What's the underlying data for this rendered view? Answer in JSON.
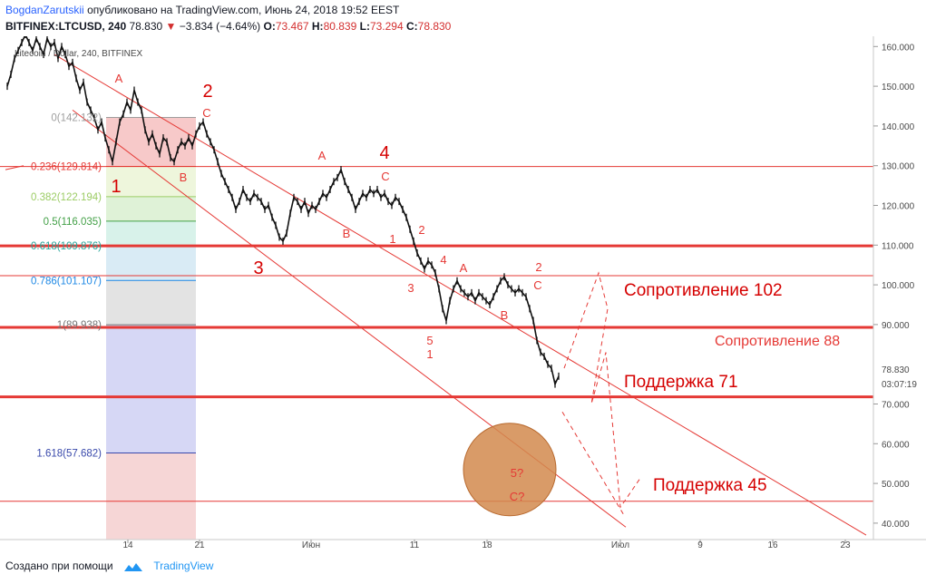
{
  "header": {
    "author": "BogdanZarutskii",
    "published": "опубликовано на TradingView.com, Июнь 24, 2018 19:52 EEST",
    "symbol": "BITFINEX:LTCUSD, 240",
    "last": "78.830",
    "change": "−3.834 (−4.64%)",
    "o_label": "O:",
    "o": "73.467",
    "h_label": "H:",
    "h": "80.839",
    "l_label": "L:",
    "l": "73.294",
    "c_label": "C:",
    "c": "78.830"
  },
  "watermark": "Litecoin / Dollar, 240, BITFINEX",
  "footer": {
    "created": "Создано при помощи",
    "brand": "TradingView"
  },
  "colors": {
    "resistance": "#e53935",
    "fib_bg_red": "#f8d0d0",
    "ellipse": "#d28a4e"
  },
  "chart_data": {
    "type": "candlestick",
    "title": "Litecoin / Dollar, 240, BITFINEX",
    "y_ticks": [
      "160.000",
      "150.000",
      "140.000",
      "130.000",
      "120.000",
      "110.000",
      "100.000",
      "90.000",
      "70.000",
      "60.000",
      "50.000",
      "40.000"
    ],
    "x_ticks": [
      "14",
      "21",
      "Июн",
      "11",
      "18",
      "Июл",
      "9",
      "16",
      "23"
    ],
    "price_label": "78.830",
    "countdown": "03:07:19",
    "ylim": [
      36,
      163
    ],
    "fib_levels": [
      {
        "label": "0(142.132)",
        "value": 142.132,
        "color": "#9e9e9e"
      },
      {
        "label": "0.236(129.814)",
        "value": 129.814,
        "color": "#e53935"
      },
      {
        "label": "0.382(122.194)",
        "value": 122.194,
        "color": "#9ccc65"
      },
      {
        "label": "0.5(116.035)",
        "value": 116.035,
        "color": "#43a047"
      },
      {
        "label": "0.618(109.876)",
        "value": 109.876,
        "color": "#26a69a"
      },
      {
        "label": "0.786(101.107)",
        "value": 101.107,
        "color": "#1e88e5"
      },
      {
        "label": "1(89.938)",
        "value": 89.938,
        "color": "#757575"
      },
      {
        "label": "1.618(57.682)",
        "value": 57.682,
        "color": "#3949ab"
      }
    ],
    "horizontal_levels": [
      {
        "value": 129.8,
        "weight": "thin"
      },
      {
        "value": 109.8,
        "weight": "thick"
      },
      {
        "value": 102.3,
        "weight": "thin"
      },
      {
        "value": 89.3,
        "weight": "thick"
      },
      {
        "value": 71.8,
        "weight": "thick"
      },
      {
        "value": 45.5,
        "weight": "thin"
      }
    ],
    "level_labels": [
      {
        "text": "Сопротивление 102",
        "value": 101
      },
      {
        "text": "Сопротивление 88",
        "value": 86
      },
      {
        "text": "Поддержка 71",
        "value": 75
      },
      {
        "text": "Поддержка 45",
        "value": 49
      }
    ],
    "wave_labels_big": [
      "1",
      "2",
      "3",
      "4"
    ],
    "wave_labels": [
      "A",
      "C",
      "B",
      "A",
      "B",
      "C",
      "1",
      "2",
      "3",
      "4",
      "5",
      "1",
      "A",
      "B",
      "2",
      "C"
    ],
    "projection_labels": [
      "5?",
      "C?"
    ],
    "price_series": [
      [
        2,
        150
      ],
      [
        6,
        153
      ],
      [
        10,
        157
      ],
      [
        14,
        159
      ],
      [
        18,
        161
      ],
      [
        22,
        163
      ],
      [
        26,
        161
      ],
      [
        30,
        159
      ],
      [
        34,
        162
      ],
      [
        38,
        160
      ],
      [
        42,
        158
      ],
      [
        46,
        162
      ],
      [
        50,
        160
      ],
      [
        54,
        161
      ],
      [
        58,
        157
      ],
      [
        62,
        160
      ],
      [
        66,
        158
      ],
      [
        70,
        155
      ],
      [
        74,
        156
      ],
      [
        78,
        152
      ],
      [
        82,
        149
      ],
      [
        86,
        151
      ],
      [
        90,
        146
      ],
      [
        94,
        144
      ],
      [
        98,
        142
      ],
      [
        102,
        139
      ],
      [
        106,
        141
      ],
      [
        110,
        137
      ],
      [
        114,
        134
      ],
      [
        118,
        131
      ],
      [
        122,
        136
      ],
      [
        126,
        141
      ],
      [
        130,
        143
      ],
      [
        134,
        146
      ],
      [
        138,
        144
      ],
      [
        142,
        149
      ],
      [
        146,
        146
      ],
      [
        150,
        144
      ],
      [
        154,
        139
      ],
      [
        158,
        136
      ],
      [
        162,
        138
      ],
      [
        166,
        135
      ],
      [
        170,
        133
      ],
      [
        174,
        137
      ],
      [
        178,
        136
      ],
      [
        182,
        132
      ],
      [
        186,
        131
      ],
      [
        190,
        134
      ],
      [
        194,
        136
      ],
      [
        198,
        135
      ],
      [
        202,
        137
      ],
      [
        206,
        135
      ],
      [
        210,
        138
      ],
      [
        214,
        140
      ],
      [
        218,
        141
      ],
      [
        222,
        138
      ],
      [
        226,
        136
      ],
      [
        230,
        134
      ],
      [
        234,
        131
      ],
      [
        238,
        128
      ],
      [
        242,
        126
      ],
      [
        246,
        124
      ],
      [
        250,
        122
      ],
      [
        254,
        119
      ],
      [
        258,
        121
      ],
      [
        262,
        124
      ],
      [
        266,
        122
      ],
      [
        270,
        121
      ],
      [
        274,
        123
      ],
      [
        278,
        122
      ],
      [
        282,
        121
      ],
      [
        286,
        119
      ],
      [
        290,
        120
      ],
      [
        294,
        117
      ],
      [
        298,
        115
      ],
      [
        302,
        112
      ],
      [
        306,
        111
      ],
      [
        310,
        113
      ],
      [
        314,
        118
      ],
      [
        318,
        122
      ],
      [
        322,
        121
      ],
      [
        326,
        119
      ],
      [
        330,
        121
      ],
      [
        334,
        118
      ],
      [
        338,
        120
      ],
      [
        342,
        119
      ],
      [
        346,
        121
      ],
      [
        350,
        123
      ],
      [
        354,
        122
      ],
      [
        358,
        124
      ],
      [
        362,
        126
      ],
      [
        366,
        127
      ],
      [
        370,
        129
      ],
      [
        374,
        126
      ],
      [
        378,
        124
      ],
      [
        382,
        122
      ],
      [
        386,
        119
      ],
      [
        390,
        121
      ],
      [
        394,
        123
      ],
      [
        398,
        122
      ],
      [
        402,
        124
      ],
      [
        406,
        123
      ],
      [
        410,
        124
      ],
      [
        414,
        122
      ],
      [
        418,
        123
      ],
      [
        422,
        121
      ],
      [
        426,
        120
      ],
      [
        430,
        122
      ],
      [
        434,
        121
      ],
      [
        438,
        119
      ],
      [
        442,
        117
      ],
      [
        446,
        114
      ],
      [
        450,
        111
      ],
      [
        454,
        108
      ],
      [
        458,
        106
      ],
      [
        462,
        104
      ],
      [
        466,
        106
      ],
      [
        470,
        105
      ],
      [
        474,
        103
      ],
      [
        478,
        99
      ],
      [
        482,
        94
      ],
      [
        486,
        91
      ],
      [
        490,
        96
      ],
      [
        494,
        99
      ],
      [
        498,
        101
      ],
      [
        502,
        99
      ],
      [
        506,
        98
      ],
      [
        510,
        97
      ],
      [
        514,
        98
      ],
      [
        518,
        96
      ],
      [
        522,
        98
      ],
      [
        526,
        97
      ],
      [
        530,
        96
      ],
      [
        534,
        95
      ],
      [
        538,
        97
      ],
      [
        542,
        99
      ],
      [
        546,
        101
      ],
      [
        550,
        102
      ],
      [
        554,
        100
      ],
      [
        558,
        99
      ],
      [
        562,
        98
      ],
      [
        566,
        99
      ],
      [
        570,
        98
      ],
      [
        574,
        97
      ],
      [
        578,
        94
      ],
      [
        582,
        91
      ],
      [
        586,
        86
      ],
      [
        590,
        83
      ],
      [
        594,
        82
      ],
      [
        598,
        80
      ],
      [
        602,
        79
      ],
      [
        606,
        75
      ],
      [
        610,
        77
      ]
    ]
  }
}
